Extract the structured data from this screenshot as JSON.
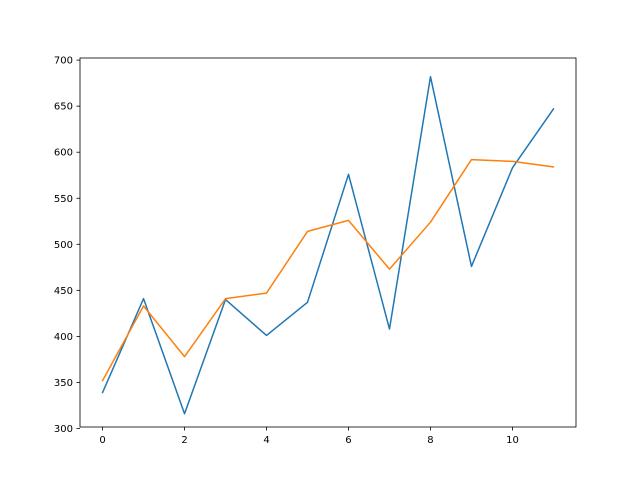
{
  "chart_data": {
    "type": "line",
    "title": "",
    "xlabel": "",
    "ylabel": "",
    "xlim": [
      -0.55,
      11.55
    ],
    "ylim": [
      301.6,
      702.3
    ],
    "x_ticks": [
      0,
      2,
      4,
      6,
      8,
      10
    ],
    "y_ticks": [
      300,
      350,
      400,
      450,
      500,
      550,
      600,
      650,
      700
    ],
    "grid": false,
    "legend": "none",
    "x": [
      0,
      1,
      2,
      3,
      4,
      5,
      6,
      7,
      8,
      9,
      10,
      11
    ],
    "series": [
      {
        "color": "#1f77b4",
        "values": [
          339,
          441,
          316,
          440,
          401,
          437,
          576,
          408,
          682,
          476,
          583,
          647
        ]
      },
      {
        "color": "#ff7f0e",
        "values": [
          352,
          433,
          378,
          441,
          447,
          514,
          526,
          473,
          524,
          592,
          590,
          584
        ]
      }
    ]
  }
}
